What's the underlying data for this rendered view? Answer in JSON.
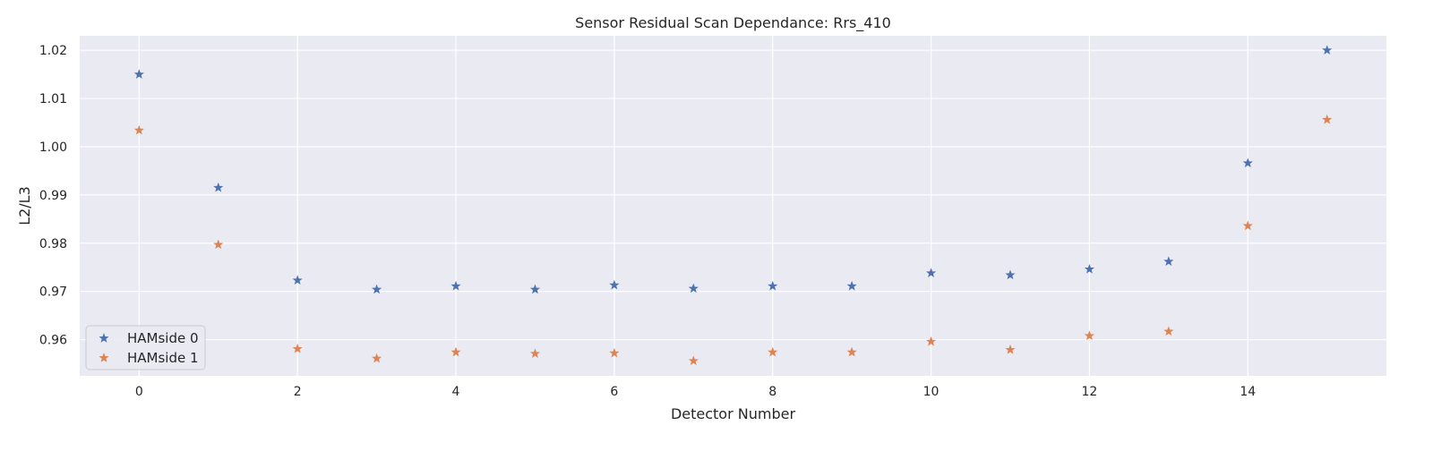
{
  "chart_data": {
    "type": "scatter",
    "title": "Sensor Residual Scan Dependance: Rrs_410",
    "xlabel": "Detector Number",
    "ylabel": "L2/L3",
    "x": [
      0,
      1,
      2,
      3,
      4,
      5,
      6,
      7,
      8,
      9,
      10,
      11,
      12,
      13,
      14,
      15
    ],
    "xlim": [
      -0.75,
      15.75
    ],
    "ylim": [
      0.9525,
      1.023
    ],
    "xticks": [
      0,
      2,
      4,
      6,
      8,
      10,
      12,
      14
    ],
    "yticks": [
      0.96,
      0.97,
      0.98,
      0.99,
      1.0,
      1.01,
      1.02
    ],
    "ytick_labels": [
      "0.96",
      "0.97",
      "0.98",
      "0.99",
      "1.00",
      "1.01",
      "1.02"
    ],
    "grid": true,
    "legend_position": "lower-left",
    "marker": "star",
    "series": [
      {
        "name": "HAMside 0",
        "color": "#4c72b0",
        "values": [
          1.015,
          0.9915,
          0.9723,
          0.9704,
          0.9711,
          0.9704,
          0.9713,
          0.9706,
          0.9711,
          0.9711,
          0.9738,
          0.9734,
          0.9746,
          0.9762,
          0.9966,
          1.02
        ]
      },
      {
        "name": "HAMside 1",
        "color": "#dd8452",
        "values": [
          1.0034,
          0.9797,
          0.9581,
          0.9561,
          0.9574,
          0.9571,
          0.9572,
          0.9556,
          0.9574,
          0.9574,
          0.9596,
          0.9579,
          0.9608,
          0.9617,
          0.9836,
          1.0056
        ]
      }
    ],
    "colors": {
      "plot_background": "#eaeaf2",
      "grid": "#ffffff",
      "text": "#262626"
    }
  }
}
